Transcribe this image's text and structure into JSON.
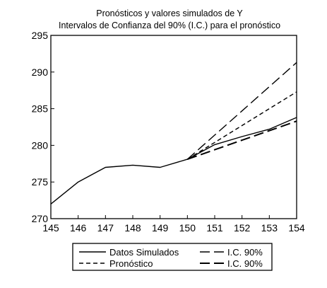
{
  "chart_data": {
    "type": "line",
    "title": "Pronósticos y valores simulados de Y",
    "subtitle": "Intervalos de Confianza del 90% (I.C.) para el pronóstico",
    "xlabel": "",
    "ylabel": "",
    "x": [
      145,
      146,
      147,
      148,
      149,
      150,
      151,
      152,
      153,
      154
    ],
    "x_ticks": [
      "145",
      "146",
      "147",
      "148",
      "149",
      "150",
      "151",
      "152",
      "153",
      "154"
    ],
    "xlim": [
      145,
      154
    ],
    "y_ticks": [
      "270",
      "275",
      "280",
      "285",
      "290",
      "295"
    ],
    "ylim": [
      270,
      295
    ],
    "grid": false,
    "legend_position": "bottom",
    "series": [
      {
        "name": "Datos Simulados",
        "style": "solid",
        "x": [
          145,
          146,
          147,
          148,
          149,
          150,
          151,
          152,
          153,
          154
        ],
        "values": [
          272.0,
          275.0,
          277.0,
          277.3,
          277.0,
          278.1,
          280.1,
          281.2,
          282.2,
          283.8
        ]
      },
      {
        "name": "Pronóstico",
        "style": "short-dash",
        "x": [
          150,
          151,
          152,
          153,
          154
        ],
        "values": [
          278.1,
          280.4,
          282.7,
          285.0,
          287.3
        ]
      },
      {
        "name": "I.C. 90%",
        "style": "long-dash",
        "x": [
          150,
          151,
          152,
          153,
          154
        ],
        "values": [
          278.1,
          281.4,
          284.7,
          288.0,
          291.3
        ]
      },
      {
        "name": "I.C. 90%",
        "style": "long-dash-heavy",
        "x": [
          150,
          151,
          152,
          153,
          154
        ],
        "values": [
          278.1,
          279.4,
          280.7,
          282.0,
          283.3
        ]
      }
    ],
    "legend": [
      {
        "label": "Datos Simulados",
        "style": "solid"
      },
      {
        "label": "I.C. 90%",
        "style": "long-dash"
      },
      {
        "label": "Pronóstico",
        "style": "short-dash"
      },
      {
        "label": "I.C. 90%",
        "style": "long-dash-heavy"
      }
    ],
    "colors": {
      "line": "#000000",
      "background": "#ffffff"
    }
  }
}
